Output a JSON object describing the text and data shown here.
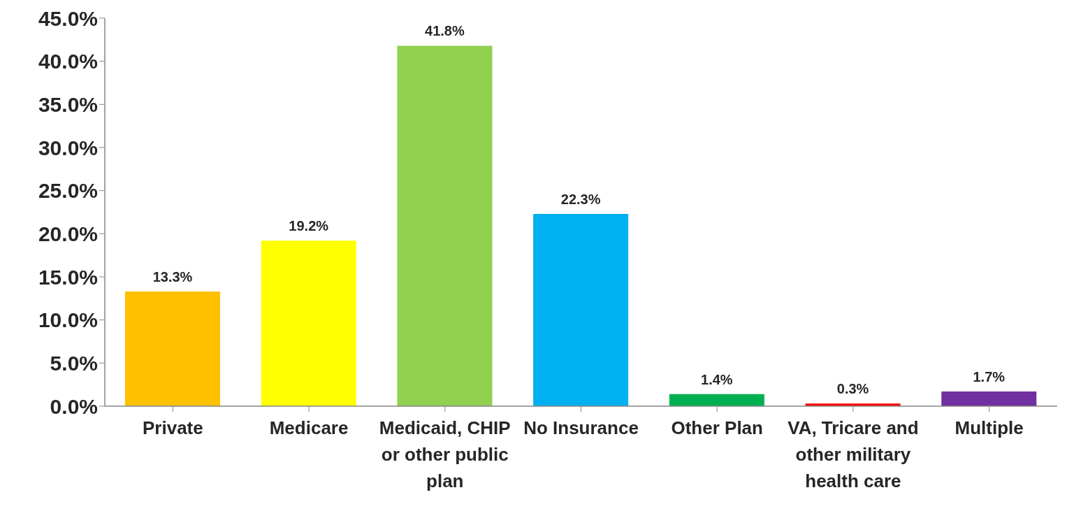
{
  "chart_data": {
    "type": "bar",
    "categories": [
      "Private",
      "Medicare",
      "Medicaid, CHIP or other public plan",
      "No Insurance",
      "Other Plan",
      "VA, Tricare and other military health care",
      "Multiple"
    ],
    "values": [
      13.3,
      19.2,
      41.8,
      22.3,
      1.4,
      0.3,
      1.7
    ],
    "colors": [
      "#ffc000",
      "#ffff00",
      "#92d050",
      "#00b0f0",
      "#00b050",
      "#ff0000",
      "#7030a0"
    ],
    "value_labels": [
      "13.3%",
      "19.2%",
      "41.8%",
      "22.3%",
      "1.4%",
      "0.3%",
      "1.7%"
    ],
    "ylim": [
      0,
      45
    ],
    "yticks": [
      {
        "value": 0,
        "label": "0.0%"
      },
      {
        "value": 5,
        "label": "5.0%"
      },
      {
        "value": 10,
        "label": "10.0%"
      },
      {
        "value": 15,
        "label": "15.0%"
      },
      {
        "value": 20,
        "label": "20.0%"
      },
      {
        "value": 25,
        "label": "25.0%"
      },
      {
        "value": 30,
        "label": "30.0%"
      },
      {
        "value": 35,
        "label": "35.0%"
      },
      {
        "value": 40,
        "label": "40.0%"
      },
      {
        "value": 45,
        "label": "45.0%"
      }
    ],
    "grid": false,
    "legend": false
  }
}
